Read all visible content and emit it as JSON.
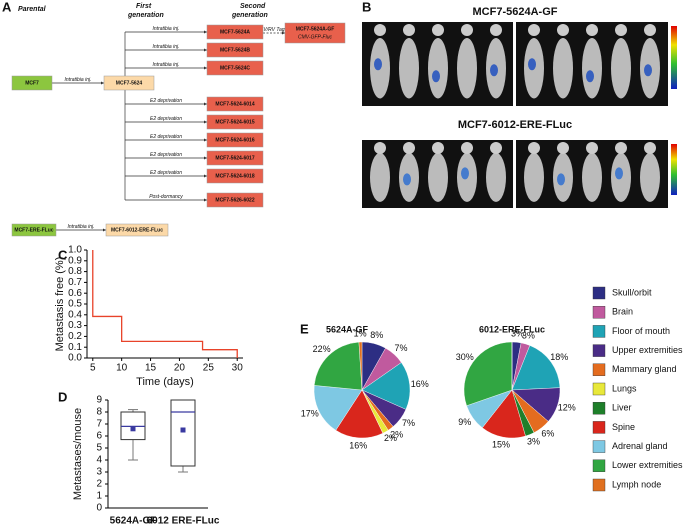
{
  "panel_labels": [
    "A",
    "B",
    "C",
    "D",
    "E"
  ],
  "diagram": {
    "headers": [
      [
        "Parental"
      ],
      [
        "First",
        "generation"
      ],
      [
        "Second",
        "generation"
      ]
    ],
    "nodes": [
      {
        "label": "MCF7"
      },
      {
        "label": "MCF7-5624"
      },
      {
        "label": "MCF7-5624A"
      },
      {
        "label": "MCF7-5624B"
      },
      {
        "label": "MCF7-5624C"
      },
      {
        "label": "MCF7-5624-6014"
      },
      {
        "label": "MCF7-5624-6015"
      },
      {
        "label": "MCF7-5624-6016"
      },
      {
        "label": "MCF7-5624-6017"
      },
      {
        "label": "MCF7-5624-6018"
      },
      {
        "label": "MCF7-5626-6022"
      },
      {
        "label": "MCF7-5624A-GF",
        "sublabel": "CMV-GFP-Fluc"
      },
      {
        "label": "MCF7-ERE-FLuc"
      },
      {
        "label": "MCF7-6012-ERE-FLuc"
      }
    ],
    "edges": [
      {
        "label": "Intratibia inj."
      },
      {
        "label": "Intratibia inj."
      },
      {
        "label": "Intratibia inj."
      },
      {
        "label": "Intratibia inj."
      },
      {
        "label": "E2 deprivation"
      },
      {
        "label": "E2 deprivation"
      },
      {
        "label": "E2 deprivation"
      },
      {
        "label": "E2 deprivation"
      },
      {
        "label": "E2 deprivation"
      },
      {
        "label": "Post-dormancy"
      },
      {
        "label": "LV/RV Tags"
      },
      {
        "label": "Intratibia inj."
      }
    ]
  },
  "images": {
    "titles": [
      "MCF7-5624A-GF",
      "MCF7-6012-ERE-FLuc"
    ]
  },
  "legend": {
    "labels": [
      "Skull/orbit",
      "Brain",
      "Floor of mouth",
      "Upper extremities",
      "Mammary gland",
      "Lungs",
      "Liver",
      "Spine",
      "Adrenal gland",
      "Lower extremities",
      "Lymph node"
    ],
    "colors": [
      "#2d2e83",
      "#c05a9e",
      "#1fa3b5",
      "#4a2c86",
      "#e46c1f",
      "#e8e83a",
      "#1e7f2a",
      "#d9261c",
      "#7ec8e3",
      "#31a642",
      "#e07020"
    ]
  },
  "chart_data": [
    {
      "type": "line",
      "y_label": "Metastasis free (%)",
      "x_label": "Time (days)",
      "color": "#e8432a",
      "x": [
        5,
        5,
        10,
        10,
        24,
        24,
        30,
        30
      ],
      "values": [
        1,
        0.385,
        0.385,
        0.154,
        0.154,
        0.077,
        0.077,
        0
      ],
      "xlim": [
        4,
        31
      ],
      "xticks": [
        5,
        10,
        15,
        20,
        25,
        30
      ],
      "ylim": [
        0,
        1
      ],
      "yticks": [
        {
          "value": 0,
          "label": "0.0"
        },
        0.1,
        0.2,
        0.3,
        0.4,
        0.5,
        0.6,
        0.7,
        0.8,
        0.9,
        {
          "value": 1,
          "label": "1.0"
        }
      ]
    },
    {
      "type": "box",
      "y_label": "Metastases/mouse",
      "categories": [
        "5624A-GF",
        "6012 ERE-FLuc"
      ],
      "stats": [
        {
          "min": 4,
          "q1": 5.7,
          "median": 6.8,
          "q3": 8,
          "max": 8.2,
          "mean": 6.6
        },
        {
          "min": 3,
          "q1": 3.5,
          "median": 8,
          "q3": 9,
          "max": 9,
          "mean": 6.5
        }
      ],
      "box_color": "#777777",
      "median_color": "#3a3aa0",
      "mean_color": "#3a3aa0",
      "ylim": [
        0,
        9
      ],
      "yticks": [
        0,
        1,
        2,
        3,
        4,
        5,
        6,
        7,
        8,
        9
      ]
    },
    {
      "type": "pie",
      "title": "5624A-GF",
      "values": [
        8,
        7,
        16,
        7,
        2,
        2,
        0,
        16,
        17,
        22,
        1
      ],
      "value_labels": [
        "8%",
        "7%",
        "16%",
        "7%",
        "2%",
        "2%",
        null,
        "16%",
        "17%",
        "22%",
        "1%"
      ]
    },
    {
      "type": "pie",
      "title": "6012-ERE-FLuc",
      "values": [
        3,
        3,
        18,
        12,
        6,
        0,
        3,
        15,
        9,
        30,
        0
      ],
      "value_labels": [
        "3%",
        "3%",
        "18%",
        "12%",
        "6%",
        null,
        "3%",
        "15%",
        "9%",
        "30%",
        null
      ]
    }
  ]
}
